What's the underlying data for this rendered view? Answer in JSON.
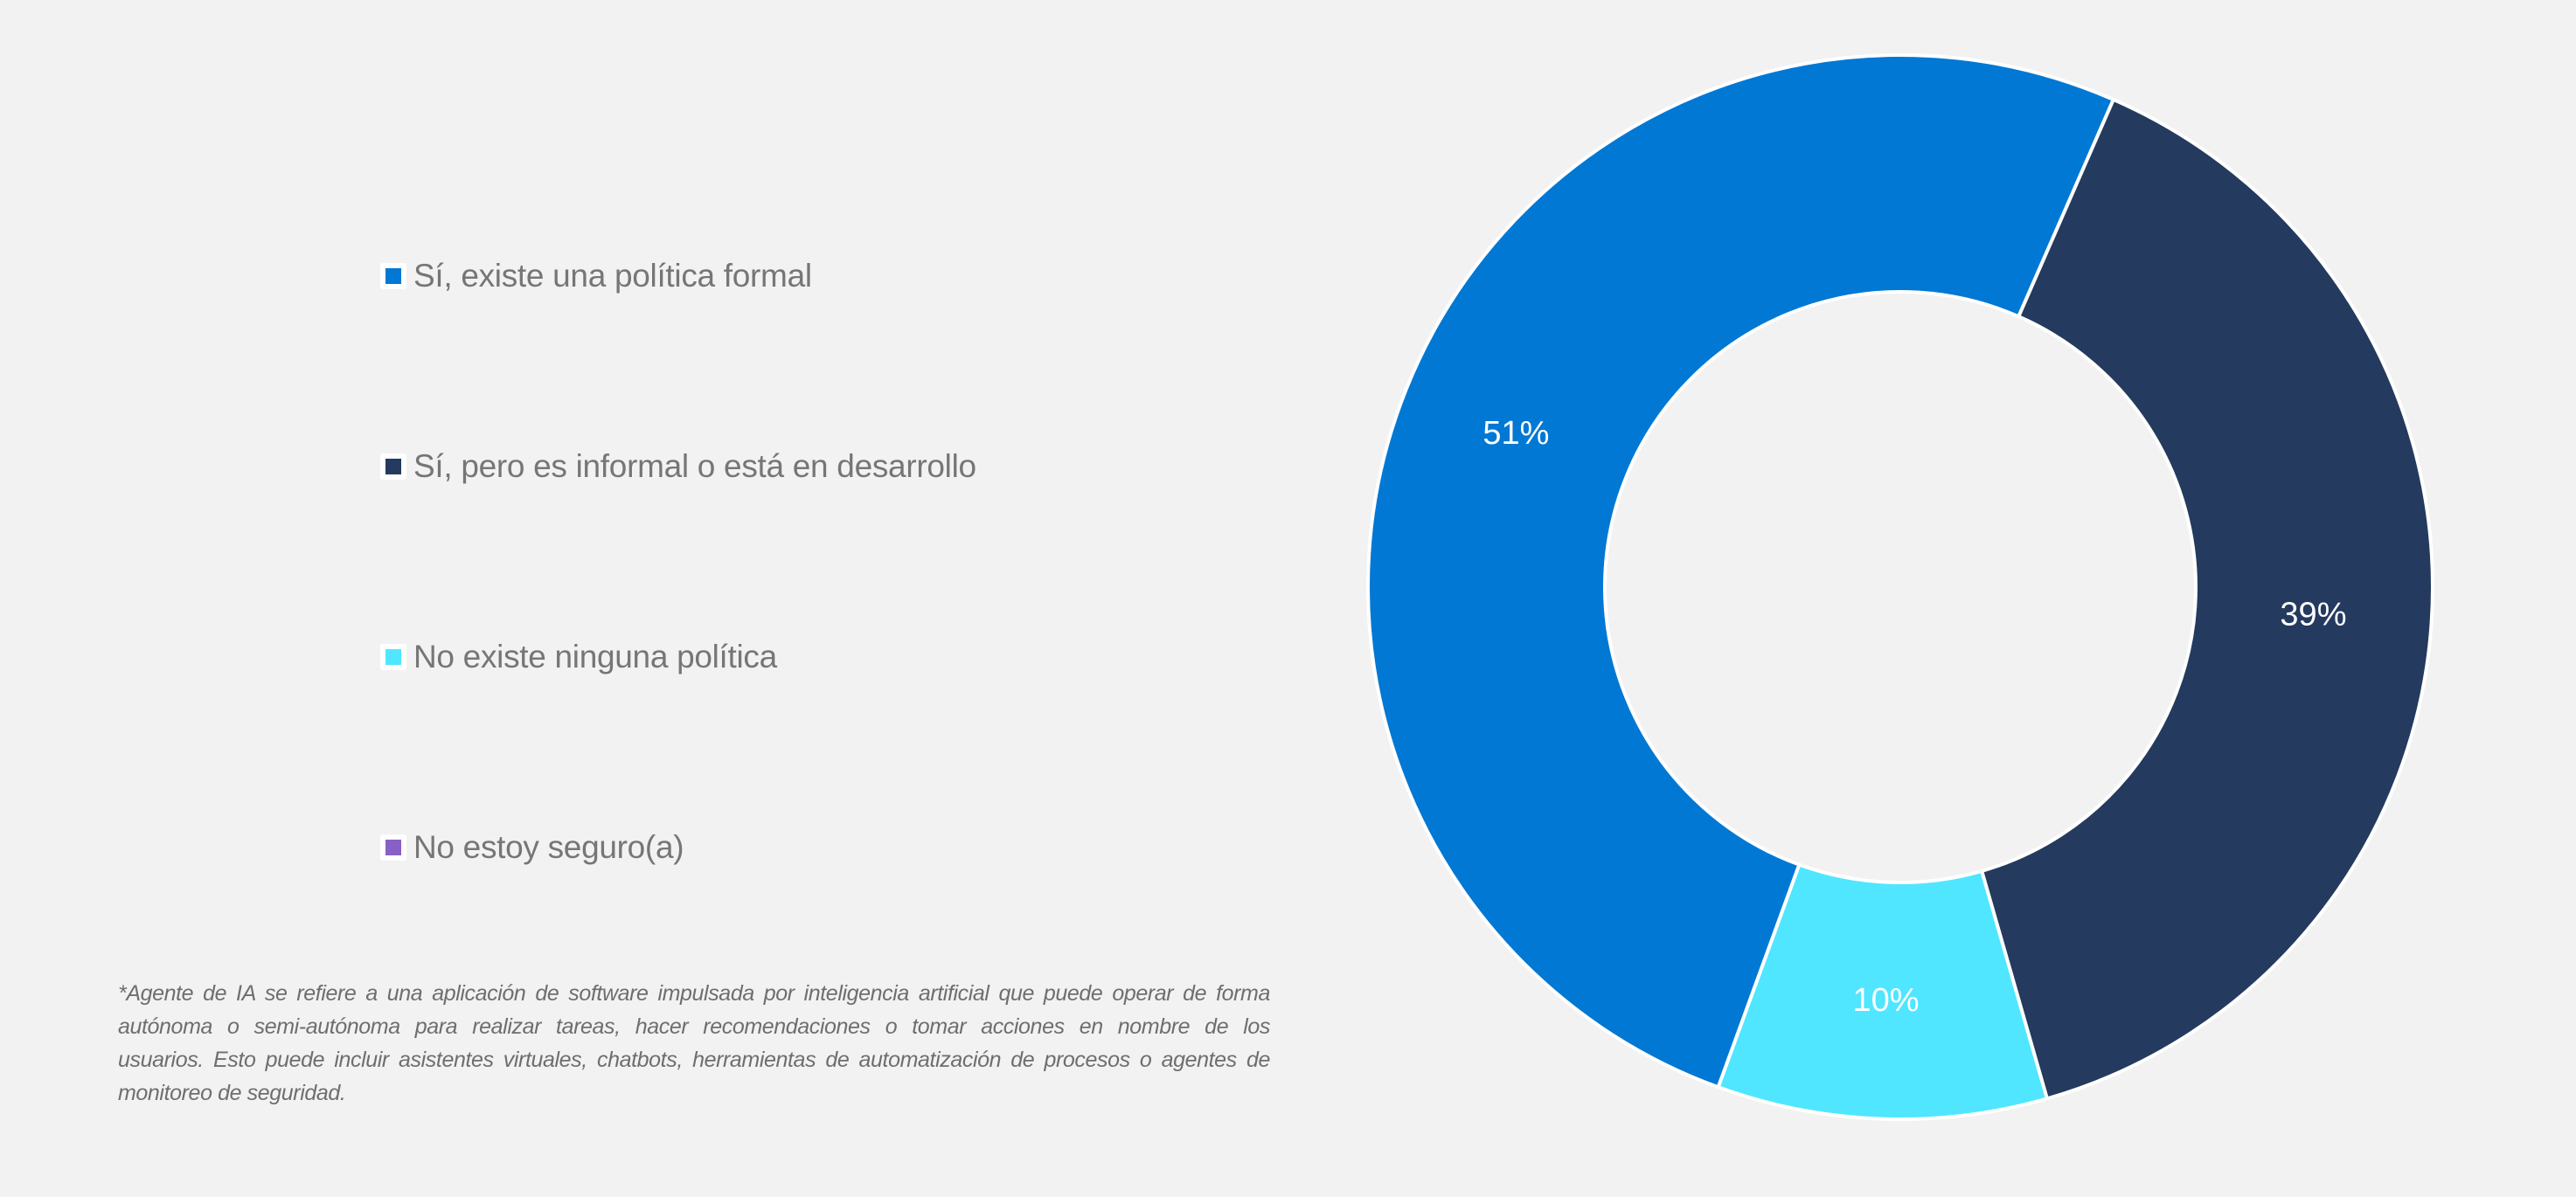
{
  "chart_data": {
    "type": "pie",
    "subtype": "donut",
    "title": "",
    "categories": [
      "Sí, existe una política formal",
      "Sí, pero es informal o está en desarrollo",
      "No existe ninguna política",
      "No estoy seguro(a)"
    ],
    "values": [
      51,
      39,
      10,
      0
    ],
    "unit": "%",
    "data_labels": [
      "51%",
      "39%",
      "10%",
      ""
    ],
    "colors": [
      "#0078D4",
      "#243A5E",
      "#50E6FF",
      "#8661C5"
    ],
    "first_slice_angle_deg": 200,
    "legend_position": "left"
  },
  "legend": {
    "items": [
      {
        "label": "Sí, existe una política formal",
        "color": "#0078D4"
      },
      {
        "label": "Sí, pero es informal o está en desarrollo",
        "color": "#243A5E"
      },
      {
        "label": "No existe ninguna política",
        "color": "#50E6FF"
      },
      {
        "label": "No estoy seguro(a)",
        "color": "#8661C5"
      }
    ]
  },
  "footnote": {
    "text": "*Agente de IA se refiere a una aplicación de software impulsada por inteligencia artificial que puede operar de forma autónoma o semi-autónoma para realizar tareas, hacer recomendaciones o tomar acciones en nombre de los usuarios. Esto puede incluir asistentes virtuales, chatbots, herramientas de automatización de procesos o agentes de monitoreo de seguridad.",
    "lines": [
      "*Agente de IA se refiere a una aplicación de software impulsada por inteligencia artificial que puede operar de forma",
      "autónoma o semi-autónoma para realizar tareas, hacer recomendaciones o tomar acciones en nombre de los",
      "usuarios. Esto puede incluir asistentes virtuales, chatbots, herramientas de automatización de procesos o agentes de",
      "monitoreo de seguridad."
    ]
  },
  "colors": {
    "background": "#F2F2F2",
    "legend_text": "#767676",
    "footnote_text": "#6E6E6E",
    "separator": "#FFFFFF"
  }
}
